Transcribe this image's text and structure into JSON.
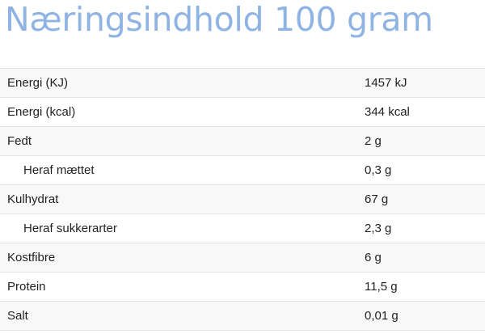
{
  "title": "Næringsindhold 100 gram",
  "rows": [
    {
      "label": "Energi (KJ)",
      "value": "1457 kJ",
      "indent": false
    },
    {
      "label": "Energi (kcal)",
      "value": "344 kcal",
      "indent": false
    },
    {
      "label": "Fedt",
      "value": "2 g",
      "indent": false
    },
    {
      "label": "Heraf mættet",
      "value": "0,3 g",
      "indent": true
    },
    {
      "label": "Kulhydrat",
      "value": "67 g",
      "indent": false
    },
    {
      "label": "Heraf sukkerarter",
      "value": "2,3 g",
      "indent": true
    },
    {
      "label": "Kostfibre",
      "value": "6 g",
      "indent": false
    },
    {
      "label": "Protein",
      "value": "11,5 g",
      "indent": false
    },
    {
      "label": "Salt",
      "value": "0,01 g",
      "indent": false
    }
  ]
}
